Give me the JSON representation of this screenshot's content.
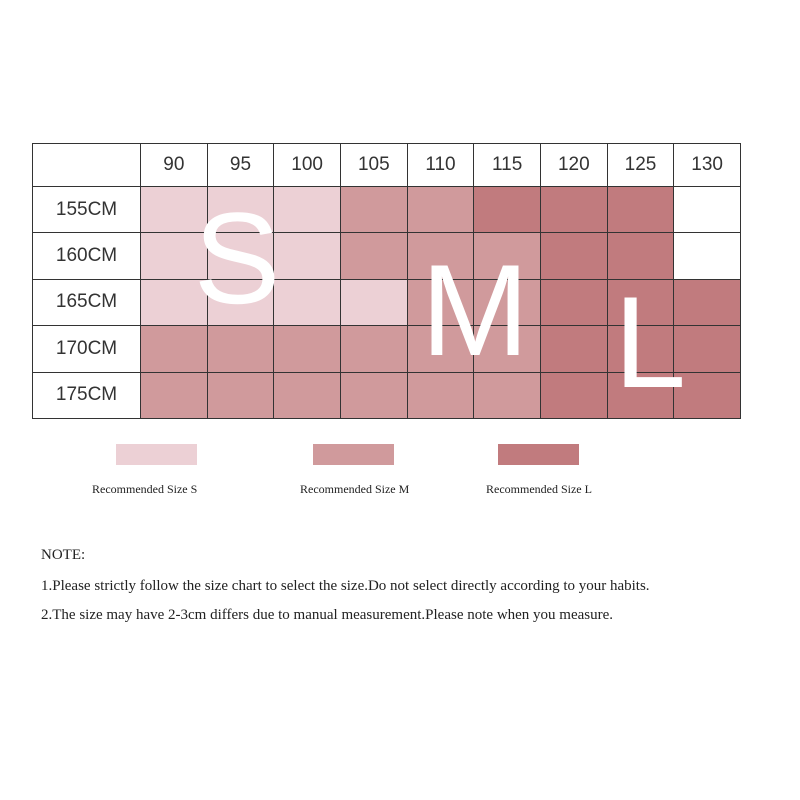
{
  "table": {
    "columns": [
      90,
      95,
      100,
      105,
      110,
      115,
      120,
      125,
      130
    ],
    "rows": [
      {
        "label": "155CM",
        "cells": [
          "#ecd0d5",
          "#ecd0d5",
          "#ecd0d5",
          "#d09a9c",
          "#d09a9c",
          "#c17b7e",
          "#c17b7e",
          "#c17b7e",
          null
        ]
      },
      {
        "label": "160CM",
        "cells": [
          "#ecd0d5",
          "#ecd0d5",
          "#ecd0d5",
          "#d09a9c",
          "#d09a9c",
          "#d09a9c",
          "#c17b7e",
          "#c17b7e",
          null
        ]
      },
      {
        "label": "165CM",
        "cells": [
          "#ecd0d5",
          "#ecd0d5",
          "#ecd0d5",
          "#ecd0d5",
          "#d09a9c",
          "#d09a9c",
          "#c17b7e",
          "#c17b7e",
          "#c17b7e"
        ]
      },
      {
        "label": "170CM",
        "cells": [
          "#d09a9c",
          "#d09a9c",
          "#d09a9c",
          "#d09a9c",
          "#d09a9c",
          "#d09a9c",
          "#c17b7e",
          "#c17b7e",
          "#c17b7e"
        ]
      },
      {
        "label": "175CM",
        "cells": [
          "#d09a9c",
          "#d09a9c",
          "#d09a9c",
          "#d09a9c",
          "#d09a9c",
          "#d09a9c",
          "#c17b7e",
          "#c17b7e",
          "#c17b7e"
        ]
      }
    ],
    "size_letters": [
      "S",
      "M",
      "L"
    ]
  },
  "legend": [
    {
      "label": "Recommended Size S",
      "color": "#ecd0d5"
    },
    {
      "label": "Recommended Size M",
      "color": "#d09a9c"
    },
    {
      "label": "Recommended Size L",
      "color": "#c17b7e"
    }
  ],
  "note": {
    "title": "NOTE:",
    "items": [
      "1.Please strictly follow the size chart to select the size.Do not select directly according to your habits.",
      "2.The size may have 2-3cm differs due to manual measurement.Please note when you measure."
    ]
  }
}
